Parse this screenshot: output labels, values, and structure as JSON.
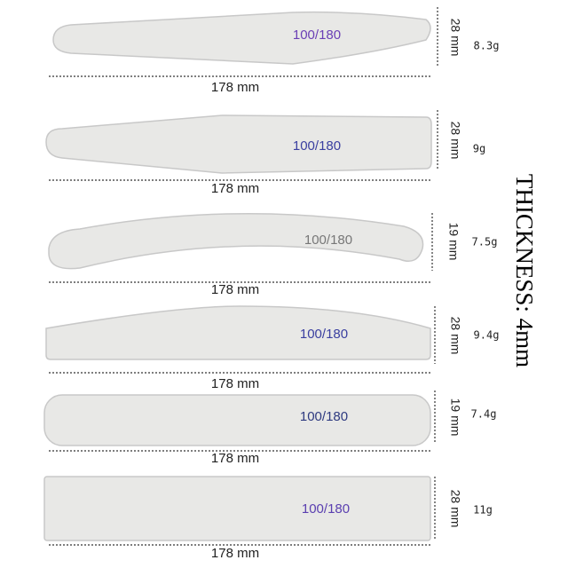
{
  "items": [
    {
      "grit": "100/180",
      "length": "178 mm",
      "width": "28 mm",
      "weight": "8.3g"
    },
    {
      "grit": "100/180",
      "length": "178 mm",
      "width": "28 mm",
      "weight": "9g"
    },
    {
      "grit": "100/180",
      "length": "178 mm",
      "width": "19 mm",
      "weight": "7.5g"
    },
    {
      "grit": "100/180",
      "length": "178 mm",
      "width": "28 mm",
      "weight": "9.4g"
    },
    {
      "grit": "100/180",
      "length": "178 mm",
      "width": "19 mm",
      "weight": "7.4g"
    },
    {
      "grit": "100/180",
      "length": "178 mm",
      "width": "28 mm",
      "weight": "11g"
    }
  ],
  "thickness": "THICKNESS: 4mm"
}
